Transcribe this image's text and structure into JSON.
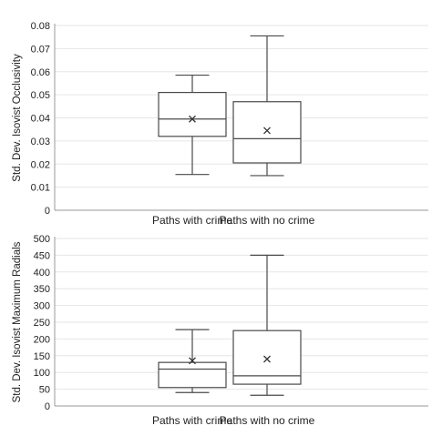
{
  "chart_data": [
    {
      "type": "box",
      "xlabel": "",
      "ylabel": "Std. Dev. Isovist Occlusivity",
      "ylim": [
        0,
        0.08
      ],
      "yticks": [
        0,
        0.01,
        0.02,
        0.03,
        0.04,
        0.05,
        0.06,
        0.07,
        0.08
      ],
      "ytick_labels": [
        "0",
        "0.01",
        "0.02",
        "0.03",
        "0.04",
        "0.05",
        "0.06",
        "0.07",
        "0.08"
      ],
      "grid": true,
      "categories": [
        "Paths with crime",
        "Paths with no crime"
      ],
      "boxes": [
        {
          "category": "Paths with crime",
          "min": 0.0155,
          "q1": 0.032,
          "median": 0.0395,
          "q3": 0.051,
          "max": 0.0585,
          "mean": 0.0395
        },
        {
          "category": "Paths with no crime",
          "min": 0.015,
          "q1": 0.0205,
          "median": 0.031,
          "q3": 0.047,
          "max": 0.0755,
          "mean": 0.0345
        }
      ]
    },
    {
      "type": "box",
      "xlabel": "",
      "ylabel": "Std. Dev. Isovist Maximum Radials",
      "ylim": [
        0,
        500
      ],
      "yticks": [
        0,
        50,
        100,
        150,
        200,
        250,
        300,
        350,
        400,
        450,
        500
      ],
      "ytick_labels": [
        "0",
        "50",
        "100",
        "150",
        "200",
        "250",
        "300",
        "350",
        "400",
        "450",
        "500"
      ],
      "grid": true,
      "categories": [
        "Paths with crime",
        "Paths with no crime"
      ],
      "boxes": [
        {
          "category": "Paths with crime",
          "min": 40,
          "q1": 55,
          "median": 110,
          "q3": 130,
          "max": 228,
          "mean": 135
        },
        {
          "category": "Paths with no crime",
          "min": 32,
          "q1": 65,
          "median": 90,
          "q3": 225,
          "max": 450,
          "mean": 140
        }
      ]
    }
  ]
}
